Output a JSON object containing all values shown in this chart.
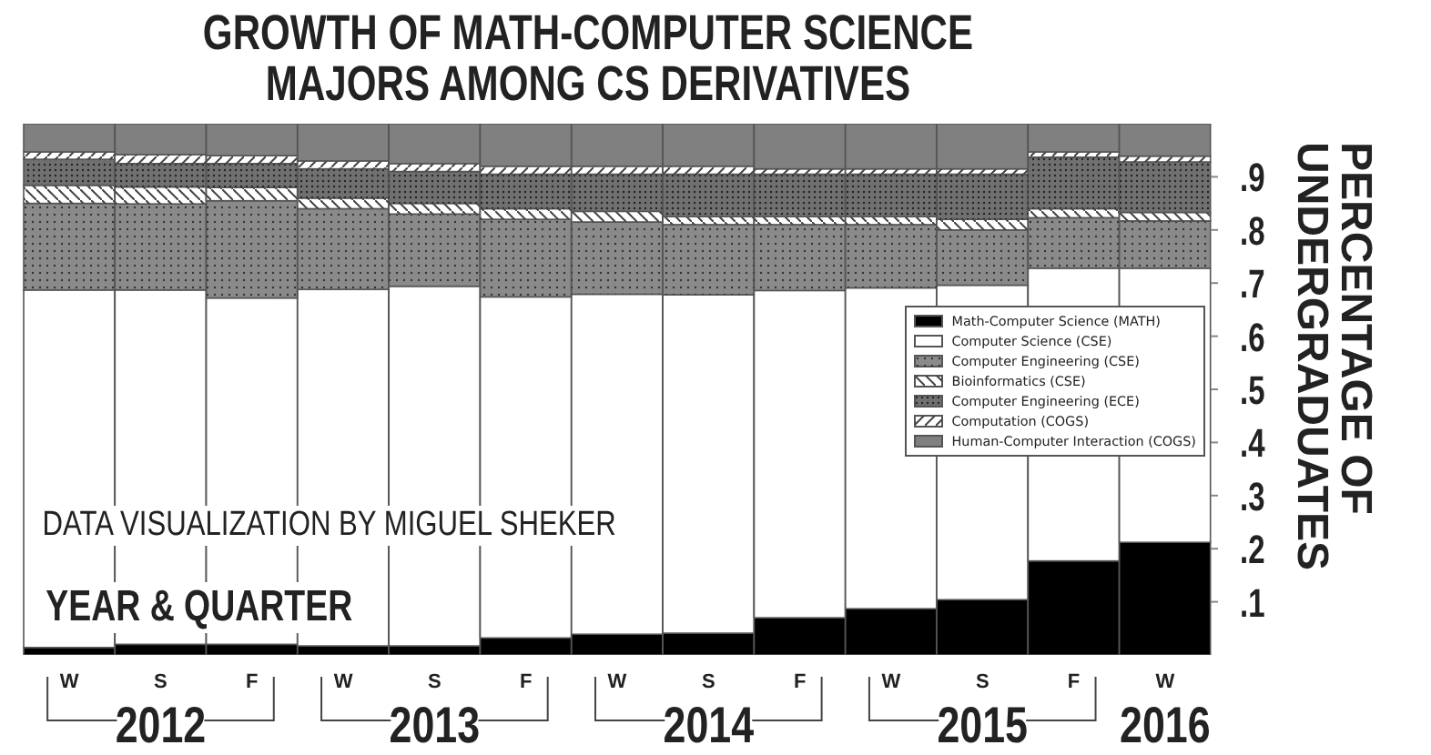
{
  "chart_data": {
    "type": "bar",
    "stacked": true,
    "title": "GROWTH OF MATH-COMPUTER SCIENCE MAJORS AMONG CS DERIVATIVES",
    "xlabel": "YEAR & QUARTER",
    "ylabel": "PERCENTAGE OF UNDERGRADUATES",
    "annotations": [
      "DATA VISUALIZATION BY MIGUEL SHEKER",
      "2012",
      "2013",
      "2014",
      "2015",
      "2016"
    ],
    "categories": [
      "W",
      "S",
      "F",
      "W",
      "S",
      "F",
      "W",
      "S",
      "F",
      "W",
      "S",
      "F",
      "W"
    ],
    "series": [
      {
        "name": "Math-Computer Science (MATH)",
        "color": "#000000",
        "values": [
          0.014,
          0.02,
          0.02,
          0.017,
          0.017,
          0.032,
          0.039,
          0.041,
          0.07,
          0.087,
          0.104,
          0.177,
          0.212
        ]
      },
      {
        "name": "Computer Science (CSE)",
        "color": "#ffffff",
        "values": [
          0.673,
          0.667,
          0.652,
          0.671,
          0.677,
          0.642,
          0.64,
          0.637,
          0.616,
          0.604,
          0.592,
          0.551,
          0.516
        ]
      },
      {
        "name": "Computer Engineering (CSE)",
        "color": "#8a8a8a",
        "values": [
          0.163,
          0.162,
          0.183,
          0.152,
          0.136,
          0.146,
          0.136,
          0.132,
          0.124,
          0.119,
          0.104,
          0.095,
          0.089
        ]
      },
      {
        "name": "Bioinformatics (CSE)",
        "color": "#ffffff",
        "values": [
          0.034,
          0.032,
          0.025,
          0.02,
          0.02,
          0.02,
          0.02,
          0.015,
          0.015,
          0.015,
          0.02,
          0.017,
          0.016
        ]
      },
      {
        "name": "Computer Engineering (ECE)",
        "color": "#707070",
        "values": [
          0.049,
          0.044,
          0.045,
          0.055,
          0.06,
          0.065,
          0.07,
          0.08,
          0.08,
          0.08,
          0.085,
          0.097,
          0.095
        ]
      },
      {
        "name": "Computation (COGS)",
        "color": "#ffffff",
        "values": [
          0.014,
          0.017,
          0.015,
          0.015,
          0.015,
          0.015,
          0.015,
          0.015,
          0.01,
          0.01,
          0.01,
          0.01,
          0.011
        ]
      },
      {
        "name": "Human-Computer Interaction (COGS)",
        "color": "#808080",
        "values": [
          0.053,
          0.058,
          0.06,
          0.07,
          0.075,
          0.08,
          0.08,
          0.08,
          0.085,
          0.085,
          0.085,
          0.053,
          0.061
        ]
      }
    ],
    "ylim": [
      0,
      1
    ],
    "yticks": [
      {
        "value": 0.1,
        "label": ".1"
      },
      {
        "value": 0.2,
        "label": ".2"
      },
      {
        "value": 0.3,
        "label": ".3"
      },
      {
        "value": 0.4,
        "label": ".4"
      },
      {
        "value": 0.5,
        "label": ".5"
      },
      {
        "value": 0.6,
        "label": ".6"
      },
      {
        "value": 0.7,
        "label": ".7"
      },
      {
        "value": 0.8,
        "label": ".8"
      },
      {
        "value": 0.9,
        "label": ".9"
      }
    ],
    "legend": "right"
  }
}
